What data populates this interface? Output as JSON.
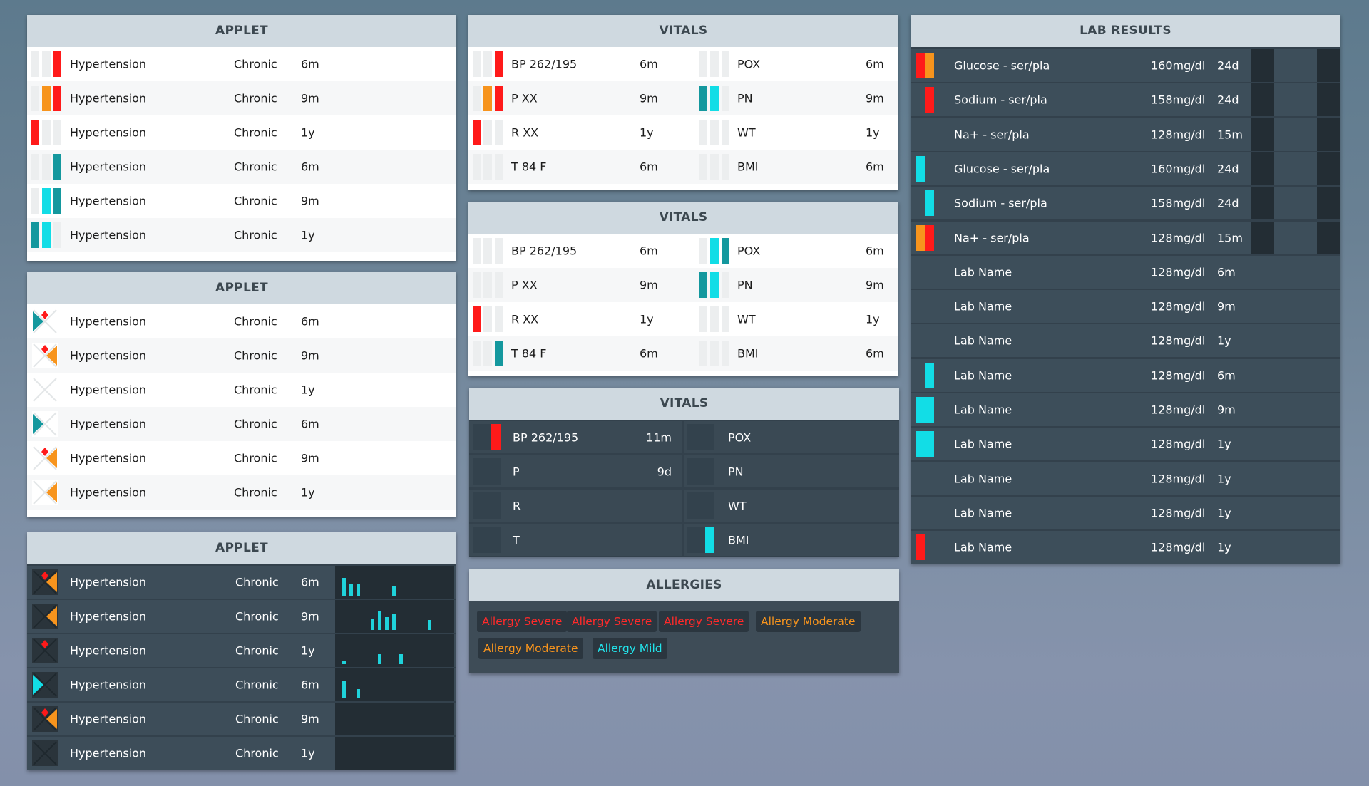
{
  "applet1": {
    "title": "APPLET",
    "rows": [
      {
        "name": "Hypertension",
        "type": "Chronic",
        "time": "6m",
        "bars": [
          "empty",
          "empty",
          "red"
        ]
      },
      {
        "name": "Hypertension",
        "type": "Chronic",
        "time": "9m",
        "bars": [
          "empty",
          "orange",
          "red"
        ]
      },
      {
        "name": "Hypertension",
        "type": "Chronic",
        "time": "1y",
        "bars": [
          "red",
          "empty",
          "empty"
        ]
      },
      {
        "name": "Hypertension",
        "type": "Chronic",
        "time": "6m",
        "bars": [
          "empty",
          "empty",
          "teal"
        ]
      },
      {
        "name": "Hypertension",
        "type": "Chronic",
        "time": "9m",
        "bars": [
          "empty",
          "cyan",
          "teal"
        ]
      },
      {
        "name": "Hypertension",
        "type": "Chronic",
        "time": "1y",
        "bars": [
          "teal",
          "cyan",
          "empty"
        ]
      }
    ]
  },
  "applet2": {
    "title": "APPLET",
    "rows": [
      {
        "name": "Hypertension",
        "type": "Chronic",
        "time": "6m",
        "icon": "x-icon-teal-red"
      },
      {
        "name": "Hypertension",
        "type": "Chronic",
        "time": "9m",
        "icon": "x-icon-orange-red"
      },
      {
        "name": "Hypertension",
        "type": "Chronic",
        "time": "1y",
        "icon": "x-icon-empty"
      },
      {
        "name": "Hypertension",
        "type": "Chronic",
        "time": "6m",
        "icon": "x-icon-teal"
      },
      {
        "name": "Hypertension",
        "type": "Chronic",
        "time": "9m",
        "icon": "x-icon-orange-red"
      },
      {
        "name": "Hypertension",
        "type": "Chronic",
        "time": "1y",
        "icon": "x-icon-orange"
      }
    ]
  },
  "applet3": {
    "title": "APPLET",
    "rows": [
      {
        "name": "Hypertension",
        "type": "Chronic",
        "time": "6m",
        "icon": "x-icon-orange-red",
        "sparkline": [
          0.7,
          0.45,
          0.45,
          0,
          0,
          0,
          0,
          0.4
        ]
      },
      {
        "name": "Hypertension",
        "type": "Chronic",
        "time": "9m",
        "icon": "x-icon-orange",
        "sparkline": [
          0,
          0,
          0,
          0,
          0.45,
          0.75,
          0.5,
          0.6,
          0,
          0,
          0,
          0,
          0.4
        ]
      },
      {
        "name": "Hypertension",
        "type": "Chronic",
        "time": "1y",
        "icon": "x-icon-red",
        "sparkline": [
          0.15,
          0,
          0,
          0,
          0,
          0.4,
          0,
          0,
          0.4
        ]
      },
      {
        "name": "Hypertension",
        "type": "Chronic",
        "time": "6m",
        "icon": "x-icon-cyan",
        "sparkline": [
          0.7,
          0,
          0.35
        ]
      },
      {
        "name": "Hypertension",
        "type": "Chronic",
        "time": "9m",
        "icon": "x-icon-orange-red",
        "sparkline": []
      },
      {
        "name": "Hypertension",
        "type": "Chronic",
        "time": "1y",
        "icon": "x-icon-dark",
        "sparkline": []
      }
    ]
  },
  "vitals1": {
    "title": "VITALS",
    "left": [
      {
        "label": "BP 262/195",
        "time": "6m",
        "bars": [
          "empty",
          "empty",
          "red"
        ]
      },
      {
        "label": "P XX",
        "time": "9m",
        "bars": [
          "empty",
          "orange",
          "red"
        ]
      },
      {
        "label": "R XX",
        "time": "1y",
        "bars": [
          "red",
          "empty",
          "empty"
        ]
      },
      {
        "label": "T 84 F",
        "time": "6m",
        "bars": [
          "empty",
          "empty",
          "empty"
        ]
      }
    ],
    "right": [
      {
        "label": "POX",
        "time": "6m",
        "bars": [
          "empty",
          "empty",
          "empty"
        ]
      },
      {
        "label": "PN",
        "time": "9m",
        "bars": [
          "teal",
          "cyan",
          "empty"
        ]
      },
      {
        "label": "WT",
        "time": "1y",
        "bars": [
          "empty",
          "empty",
          "empty"
        ]
      },
      {
        "label": "BMI",
        "time": "6m",
        "bars": [
          "empty",
          "empty",
          "empty"
        ]
      }
    ]
  },
  "vitals2": {
    "title": "VITALS",
    "left": [
      {
        "label": "BP 262/195",
        "time": "6m",
        "bars": [
          "empty",
          "empty",
          "empty"
        ]
      },
      {
        "label": "P XX",
        "time": "9m",
        "bars": [
          "empty",
          "empty",
          "empty"
        ]
      },
      {
        "label": "R XX",
        "time": "1y",
        "bars": [
          "red",
          "empty",
          "empty"
        ]
      },
      {
        "label": "T 84 F",
        "time": "6m",
        "bars": [
          "empty",
          "empty",
          "teal"
        ]
      }
    ],
    "right": [
      {
        "label": "POX",
        "time": "6m",
        "bars": [
          "empty",
          "cyan",
          "teal"
        ]
      },
      {
        "label": "PN",
        "time": "9m",
        "bars": [
          "teal",
          "cyan",
          "empty"
        ]
      },
      {
        "label": "WT",
        "time": "1y",
        "bars": [
          "empty",
          "empty",
          "empty"
        ]
      },
      {
        "label": "BMI",
        "time": "6m",
        "bars": [
          "empty",
          "empty",
          "empty"
        ]
      }
    ]
  },
  "vitals3": {
    "title": "VITALS",
    "left": [
      {
        "label": "BP 262/195",
        "value": "11m",
        "bar": "red"
      },
      {
        "label": "P",
        "value": "9d",
        "bar": ""
      },
      {
        "label": "R",
        "value": "",
        "bar": ""
      },
      {
        "label": "T",
        "value": "",
        "bar": ""
      }
    ],
    "right": [
      {
        "label": "POX",
        "bar": ""
      },
      {
        "label": "PN",
        "bar": ""
      },
      {
        "label": "WT",
        "bar": ""
      },
      {
        "label": "BMI",
        "bar": "cyan"
      }
    ]
  },
  "allergies": {
    "title": "ALLERGIES",
    "items": [
      {
        "label": "Allergy Severe",
        "severity": "severe"
      },
      {
        "label": "Allergy Severe",
        "severity": "severe"
      },
      {
        "label": "Allergy Severe",
        "severity": "severe"
      },
      {
        "label": "Allergy Moderate",
        "severity": "moderate"
      },
      {
        "label": "Allergy Moderate",
        "severity": "moderate"
      },
      {
        "label": "Allergy Mild",
        "severity": "mild"
      }
    ]
  },
  "labs": {
    "title": "LAB RESULTS",
    "rows": [
      {
        "name": "Glucose - ser/pla",
        "value": "160mg/dl",
        "time": "24d",
        "bars": [
          "red",
          "orange"
        ],
        "dark_tail": true
      },
      {
        "name": "Sodium - ser/pla",
        "value": "158mg/dl",
        "time": "24d",
        "bars": [
          "",
          "red"
        ],
        "dark_tail": true
      },
      {
        "name": "Na+ - ser/pla",
        "value": "128mg/dl",
        "time": "15m",
        "bars": [
          "",
          ""
        ],
        "dark_tail": true
      },
      {
        "name": "Glucose - ser/pla",
        "value": "160mg/dl",
        "time": "24d",
        "bars": [
          "cyan",
          ""
        ],
        "dark_tail": true
      },
      {
        "name": "Sodium - ser/pla",
        "value": "158mg/dl",
        "time": "24d",
        "bars": [
          "",
          "cyan"
        ],
        "dark_tail": true
      },
      {
        "name": "Na+ - ser/pla",
        "value": "128mg/dl",
        "time": "15m",
        "bars": [
          "orange",
          "red"
        ],
        "dark_tail": true
      },
      {
        "name": "Lab Name",
        "value": "128mg/dl",
        "time": "6m",
        "bars": [
          "",
          ""
        ],
        "dark_tail": false
      },
      {
        "name": "Lab Name",
        "value": "128mg/dl",
        "time": "9m",
        "bars": [
          "",
          ""
        ],
        "dark_tail": false
      },
      {
        "name": "Lab Name",
        "value": "128mg/dl",
        "time": "1y",
        "bars": [
          "",
          ""
        ],
        "dark_tail": false
      },
      {
        "name": "Lab Name",
        "value": "128mg/dl",
        "time": "6m",
        "bars": [
          "",
          "cyan"
        ],
        "dark_tail": false
      },
      {
        "name": "Lab Name",
        "value": "128mg/dl",
        "time": "9m",
        "bars": [
          "cyan",
          "cyan"
        ],
        "dark_tail": false
      },
      {
        "name": "Lab Name",
        "value": "128mg/dl",
        "time": "1y",
        "bars": [
          "cyan",
          "cyan"
        ],
        "dark_tail": false
      },
      {
        "name": "Lab Name",
        "value": "128mg/dl",
        "time": "1y",
        "bars": [
          "",
          ""
        ],
        "dark_tail": false
      },
      {
        "name": "Lab Name",
        "value": "128mg/dl",
        "time": "1y",
        "bars": [
          "",
          ""
        ],
        "dark_tail": false
      },
      {
        "name": "Lab Name",
        "value": "128mg/dl",
        "time": "1y",
        "bars": [
          "red",
          ""
        ],
        "dark_tail": false
      }
    ]
  },
  "colors": {
    "red": "#ff1a1a",
    "orange": "#f7941d",
    "teal": "#14989e",
    "cyan": "#12dde6",
    "severe": "#ff2a2a",
    "moderate": "#f7941d",
    "mild": "#22e3ea"
  }
}
